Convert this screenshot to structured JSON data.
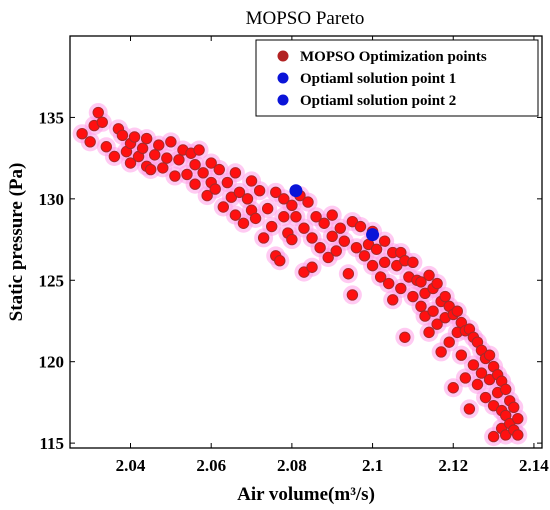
{
  "chart_data": {
    "type": "scatter",
    "title": "MOPSO Pareto",
    "xlabel": "Air volume(m³/s)",
    "ylabel": "Static pressure (Pa)",
    "xlim": [
      2.025,
      2.142
    ],
    "ylim": [
      114.7,
      140.0
    ],
    "xticks": [
      2.04,
      2.06,
      2.08,
      2.1,
      2.12,
      2.14
    ],
    "xtick_labels": [
      "2.04",
      "2.06",
      "2.08",
      "2.1",
      "2.12",
      "2.14"
    ],
    "yticks": [
      115,
      120,
      125,
      130,
      135
    ],
    "ytick_labels": [
      "115",
      "120",
      "125",
      "130",
      "135"
    ],
    "grid": false,
    "legend_position": "top-right",
    "series": [
      {
        "name": "MOPSO Optimization points",
        "marker_color": "#ff1010",
        "edge_color": "#a52a2a",
        "halo_color": "#ff9ee8",
        "points": [
          [
            2.028,
            134.0
          ],
          [
            2.03,
            133.5
          ],
          [
            2.031,
            134.5
          ],
          [
            2.032,
            135.3
          ],
          [
            2.033,
            134.7
          ],
          [
            2.034,
            133.2
          ],
          [
            2.036,
            132.6
          ],
          [
            2.037,
            134.3
          ],
          [
            2.038,
            133.9
          ],
          [
            2.039,
            132.9
          ],
          [
            2.04,
            133.4
          ],
          [
            2.04,
            132.2
          ],
          [
            2.041,
            133.8
          ],
          [
            2.042,
            132.6
          ],
          [
            2.043,
            133.1
          ],
          [
            2.044,
            132.0
          ],
          [
            2.044,
            133.7
          ],
          [
            2.045,
            131.8
          ],
          [
            2.046,
            132.7
          ],
          [
            2.047,
            133.3
          ],
          [
            2.048,
            131.9
          ],
          [
            2.049,
            132.5
          ],
          [
            2.05,
            133.5
          ],
          [
            2.051,
            131.4
          ],
          [
            2.052,
            132.4
          ],
          [
            2.053,
            133.0
          ],
          [
            2.054,
            131.5
          ],
          [
            2.055,
            132.8
          ],
          [
            2.056,
            130.9
          ],
          [
            2.056,
            132.1
          ],
          [
            2.057,
            133.0
          ],
          [
            2.058,
            131.6
          ],
          [
            2.059,
            130.2
          ],
          [
            2.06,
            132.2
          ],
          [
            2.06,
            131.0
          ],
          [
            2.061,
            130.6
          ],
          [
            2.062,
            131.8
          ],
          [
            2.063,
            129.5
          ],
          [
            2.064,
            131.0
          ],
          [
            2.065,
            130.1
          ],
          [
            2.066,
            131.6
          ],
          [
            2.066,
            129.0
          ],
          [
            2.067,
            130.4
          ],
          [
            2.068,
            128.5
          ],
          [
            2.069,
            130.0
          ],
          [
            2.07,
            131.1
          ],
          [
            2.07,
            129.3
          ],
          [
            2.071,
            128.8
          ],
          [
            2.072,
            130.5
          ],
          [
            2.073,
            127.6
          ],
          [
            2.074,
            129.4
          ],
          [
            2.075,
            128.3
          ],
          [
            2.076,
            130.4
          ],
          [
            2.076,
            126.5
          ],
          [
            2.077,
            126.2
          ],
          [
            2.078,
            128.9
          ],
          [
            2.078,
            130.0
          ],
          [
            2.079,
            127.9
          ],
          [
            2.08,
            129.6
          ],
          [
            2.08,
            127.5
          ],
          [
            2.081,
            128.9
          ],
          [
            2.082,
            130.2
          ],
          [
            2.083,
            128.2
          ],
          [
            2.083,
            125.5
          ],
          [
            2.084,
            129.8
          ],
          [
            2.085,
            127.6
          ],
          [
            2.085,
            125.8
          ],
          [
            2.086,
            128.9
          ],
          [
            2.087,
            127.0
          ],
          [
            2.088,
            128.5
          ],
          [
            2.089,
            126.4
          ],
          [
            2.09,
            127.7
          ],
          [
            2.09,
            129.0
          ],
          [
            2.091,
            126.8
          ],
          [
            2.092,
            128.2
          ],
          [
            2.093,
            127.4
          ],
          [
            2.094,
            125.4
          ],
          [
            2.095,
            124.1
          ],
          [
            2.095,
            128.6
          ],
          [
            2.096,
            127.0
          ],
          [
            2.097,
            128.3
          ],
          [
            2.098,
            126.5
          ],
          [
            2.099,
            127.2
          ],
          [
            2.1,
            125.9
          ],
          [
            2.1,
            128.0
          ],
          [
            2.101,
            126.9
          ],
          [
            2.102,
            125.2
          ],
          [
            2.103,
            127.4
          ],
          [
            2.103,
            126.1
          ],
          [
            2.104,
            124.8
          ],
          [
            2.105,
            126.7
          ],
          [
            2.105,
            123.8
          ],
          [
            2.106,
            125.9
          ],
          [
            2.107,
            126.7
          ],
          [
            2.107,
            124.5
          ],
          [
            2.108,
            121.5
          ],
          [
            2.108,
            126.2
          ],
          [
            2.109,
            125.2
          ],
          [
            2.11,
            124.0
          ],
          [
            2.11,
            126.1
          ],
          [
            2.111,
            125.0
          ],
          [
            2.112,
            123.4
          ],
          [
            2.112,
            124.9
          ],
          [
            2.113,
            124.2
          ],
          [
            2.113,
            122.8
          ],
          [
            2.114,
            125.3
          ],
          [
            2.114,
            121.8
          ],
          [
            2.115,
            124.5
          ],
          [
            2.115,
            123.1
          ],
          [
            2.116,
            124.8
          ],
          [
            2.116,
            122.3
          ],
          [
            2.117,
            123.7
          ],
          [
            2.117,
            120.6
          ],
          [
            2.118,
            124.0
          ],
          [
            2.118,
            122.7
          ],
          [
            2.119,
            123.4
          ],
          [
            2.119,
            121.2
          ],
          [
            2.12,
            122.9
          ],
          [
            2.12,
            118.4
          ],
          [
            2.121,
            123.1
          ],
          [
            2.121,
            121.8
          ],
          [
            2.122,
            122.4
          ],
          [
            2.122,
            120.4
          ],
          [
            2.123,
            121.9
          ],
          [
            2.123,
            119.0
          ],
          [
            2.124,
            122.0
          ],
          [
            2.124,
            117.1
          ],
          [
            2.125,
            121.5
          ],
          [
            2.125,
            119.8
          ],
          [
            2.126,
            121.2
          ],
          [
            2.126,
            118.6
          ],
          [
            2.127,
            120.7
          ],
          [
            2.127,
            119.3
          ],
          [
            2.128,
            120.2
          ],
          [
            2.128,
            117.8
          ],
          [
            2.129,
            120.4
          ],
          [
            2.129,
            118.9
          ],
          [
            2.13,
            119.7
          ],
          [
            2.13,
            117.3
          ],
          [
            2.13,
            115.4
          ],
          [
            2.131,
            119.2
          ],
          [
            2.131,
            118.1
          ],
          [
            2.132,
            118.8
          ],
          [
            2.132,
            117.0
          ],
          [
            2.132,
            115.9
          ],
          [
            2.133,
            118.3
          ],
          [
            2.133,
            116.7
          ],
          [
            2.133,
            115.5
          ],
          [
            2.134,
            117.6
          ],
          [
            2.134,
            116.2
          ],
          [
            2.135,
            117.2
          ],
          [
            2.135,
            115.8
          ],
          [
            2.136,
            116.5
          ],
          [
            2.136,
            115.5
          ]
        ]
      },
      {
        "name": "Optiaml solution point 1",
        "marker_color": "#0a14d8",
        "points": [
          [
            2.081,
            130.5
          ]
        ]
      },
      {
        "name": "Optiaml solution point 2",
        "marker_color": "#0a14d8",
        "points": [
          [
            2.1,
            127.8
          ]
        ]
      }
    ]
  }
}
